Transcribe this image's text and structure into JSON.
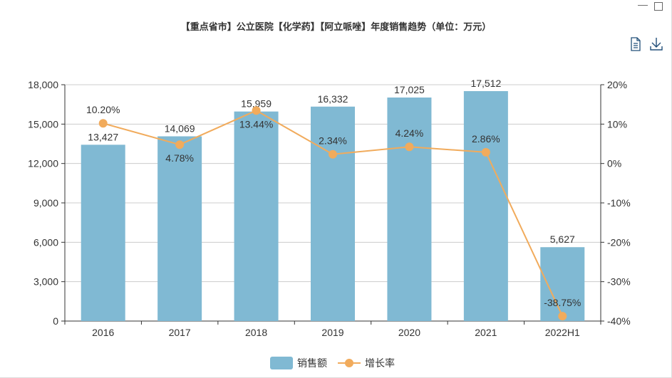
{
  "window": {
    "minimize_icon": "minimize-icon",
    "maximize_icon": "maximize-icon"
  },
  "toolbox": {
    "data_view_icon": "document-icon",
    "save_icon": "download-icon"
  },
  "colors": {
    "bar": "#80b9d3",
    "line": "#f1ab5c",
    "axis": "#333333",
    "grid": "#cccccc"
  },
  "chart_data": {
    "type": "bar+line",
    "title": "【重点省市】公立医院【化学药】【阿立哌唑】年度销售趋势（单位：万元）",
    "categories": [
      "2016",
      "2017",
      "2018",
      "2019",
      "2020",
      "2021",
      "2022H1"
    ],
    "series": [
      {
        "name": "销售额",
        "type": "bar",
        "axis": "left",
        "values": [
          13427,
          14069,
          15959,
          16332,
          17025,
          17512,
          5627
        ],
        "labels": [
          "13,427",
          "14,069",
          "15,959",
          "16,332",
          "17,025",
          "17,512",
          "5,627"
        ]
      },
      {
        "name": "增长率",
        "type": "line",
        "axis": "right",
        "values": [
          10.2,
          4.78,
          13.44,
          2.34,
          4.24,
          2.86,
          -38.75
        ],
        "labels": [
          "10.20%",
          "4.78%",
          "13.44%",
          "2.34%",
          "4.24%",
          "2.86%",
          "-38.75%"
        ]
      }
    ],
    "left_axis": {
      "ylim": [
        0,
        18000
      ],
      "ticks": [
        "0",
        "3,000",
        "6,000",
        "9,000",
        "12,000",
        "15,000",
        "18,000"
      ]
    },
    "right_axis": {
      "ylim": [
        -40,
        20
      ],
      "ticks": [
        "-40%",
        "-30%",
        "-20%",
        "-10%",
        "0%",
        "10%",
        "20%"
      ]
    },
    "grid": true,
    "legend_position": "bottom"
  }
}
